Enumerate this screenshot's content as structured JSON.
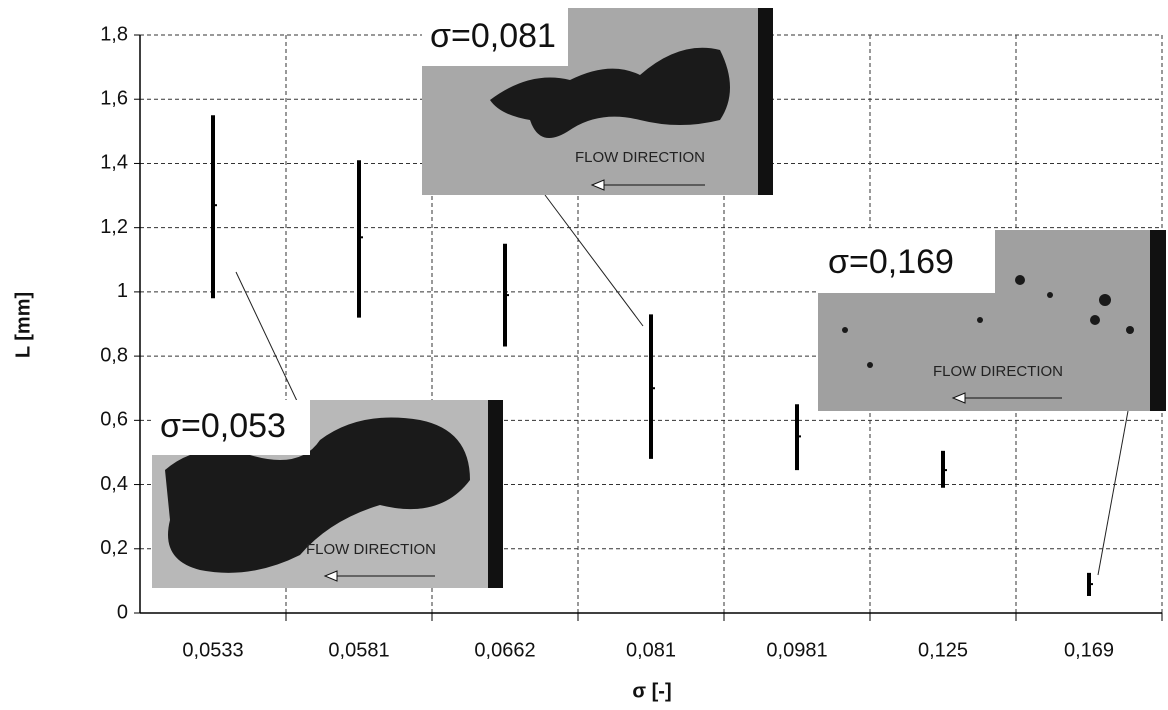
{
  "chart_data": {
    "type": "range",
    "x_label": "σ [-]",
    "y_label": "L [mm]",
    "categories": [
      "0,0533",
      "0,0581",
      "0,0662",
      "0,081",
      "0,0981",
      "0,125",
      "0,169"
    ],
    "low": [
      0.98,
      0.92,
      0.83,
      0.48,
      0.445,
      0.39,
      0.053
    ],
    "mid": [
      1.27,
      1.17,
      0.99,
      0.7,
      0.55,
      0.445,
      0.09
    ],
    "high": [
      1.55,
      1.41,
      1.15,
      0.93,
      0.65,
      0.505,
      0.125
    ],
    "color": "#000000",
    "ylim": [
      0,
      1.8
    ],
    "yticks": [
      0,
      {
        "value": 0.2,
        "label": "0,2"
      },
      {
        "value": 0.4,
        "label": "0,4"
      },
      {
        "value": 0.6,
        "label": "0,6"
      },
      {
        "value": 0.8,
        "label": "0,8"
      },
      1,
      {
        "value": 1.2,
        "label": "1,2"
      },
      {
        "value": 1.4,
        "label": "1,4"
      },
      {
        "value": 1.6,
        "label": "1,6"
      },
      {
        "value": 1.8,
        "label": "1,8"
      }
    ],
    "grid": true,
    "annotations": [
      {
        "label": "σ=0,053",
        "caption": "FLOW DIRECTION"
      },
      {
        "label": "σ=0,081",
        "caption": "FLOW DIRECTION"
      },
      {
        "label": "σ=0,169",
        "caption": "FLOW DIRECTION"
      }
    ]
  }
}
